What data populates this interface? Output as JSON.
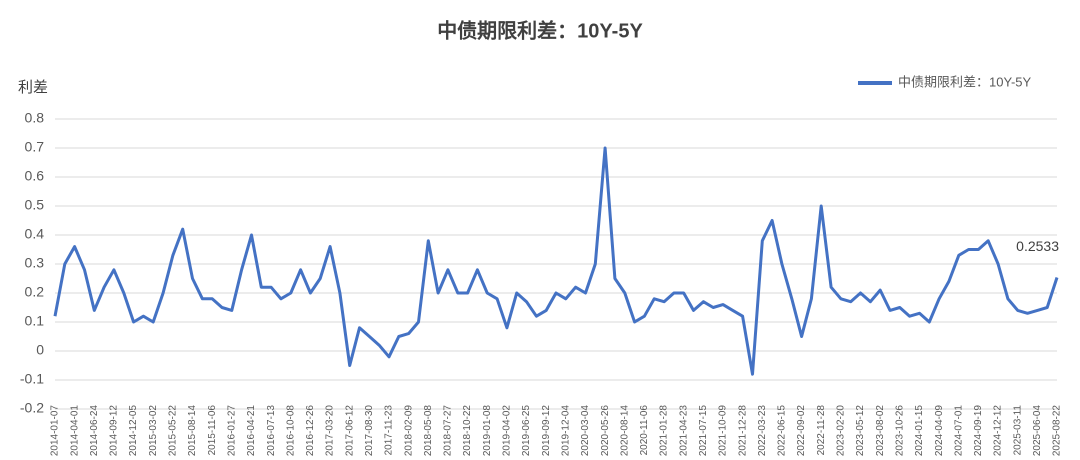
{
  "chart_data": {
    "type": "line",
    "title": "中债期限利差：10Y-5Y",
    "y_label": "利差",
    "categories": [
      "2014-01-07",
      null,
      "2014-04-01",
      null,
      "2014-06-24",
      null,
      "2014-09-12",
      null,
      "2014-12-05",
      null,
      "2015-03-02",
      null,
      "2015-05-22",
      null,
      "2015-08-14",
      null,
      "2015-11-06",
      null,
      "2016-01-27",
      null,
      "2016-04-21",
      null,
      "2016-07-13",
      null,
      "2016-10-08",
      null,
      "2016-12-26",
      null,
      "2017-03-20",
      null,
      "2017-06-12",
      null,
      "2017-08-30",
      null,
      "2017-11-23",
      null,
      "2018-02-09",
      null,
      "2018-05-08",
      null,
      "2018-07-27",
      null,
      "2018-10-22",
      null,
      "2019-01-08",
      null,
      "2019-04-02",
      null,
      "2019-06-25",
      null,
      "2019-09-12",
      null,
      "2019-12-04",
      null,
      "2020-03-04",
      null,
      "2020-05-26",
      null,
      "2020-08-14",
      null,
      "2020-11-06",
      null,
      "2021-01-28",
      null,
      "2021-04-23",
      null,
      "2021-07-15",
      null,
      "2021-10-09",
      null,
      "2021-12-28",
      null,
      "2022-03-23",
      null,
      "2022-06-15",
      null,
      "2022-09-02",
      null,
      "2022-11-28",
      null,
      "2023-02-20",
      null,
      "2023-05-12",
      null,
      "2023-08-02",
      null,
      "2023-10-26",
      null,
      "2024-01-15",
      null,
      "2024-04-09",
      null,
      "2024-07-01",
      null,
      "2024-09-19",
      null,
      "2024-12-12",
      null,
      "2025-03-11",
      null,
      "2025-06-04",
      null,
      "2025-08-22"
    ],
    "series": [
      {
        "name": "中债期限利差：10Y-5Y",
        "color": "#4472c4",
        "values": [
          0.12,
          0.3,
          0.36,
          0.28,
          0.14,
          0.22,
          0.28,
          0.2,
          0.1,
          0.12,
          0.1,
          0.2,
          0.33,
          0.42,
          0.25,
          0.18,
          0.18,
          0.15,
          0.14,
          0.28,
          0.4,
          0.22,
          0.22,
          0.18,
          0.2,
          0.28,
          0.2,
          0.25,
          0.36,
          0.2,
          -0.05,
          0.08,
          0.05,
          0.02,
          -0.02,
          0.05,
          0.06,
          0.1,
          0.38,
          0.2,
          0.28,
          0.2,
          0.2,
          0.28,
          0.2,
          0.18,
          0.08,
          0.2,
          0.17,
          0.12,
          0.14,
          0.2,
          0.18,
          0.22,
          0.2,
          0.3,
          0.7,
          0.25,
          0.2,
          0.1,
          0.12,
          0.18,
          0.17,
          0.2,
          0.2,
          0.14,
          0.17,
          0.15,
          0.16,
          0.14,
          0.12,
          -0.08,
          0.38,
          0.45,
          0.3,
          0.18,
          0.05,
          0.18,
          0.5,
          0.22,
          0.18,
          0.17,
          0.2,
          0.17,
          0.21,
          0.14,
          0.15,
          0.12,
          0.13,
          0.1,
          0.18,
          0.24,
          0.33,
          0.35,
          0.35,
          0.38,
          0.3,
          0.18,
          0.14,
          0.13,
          0.14,
          0.15,
          0.2533
        ]
      }
    ],
    "ylim": [
      -0.2,
      0.8
    ],
    "yticks": [
      -0.2,
      -0.1,
      0,
      0.1,
      0.2,
      0.3,
      0.4,
      0.5,
      0.6,
      0.7,
      0.8
    ],
    "grid": true,
    "legend": "top-right"
  }
}
